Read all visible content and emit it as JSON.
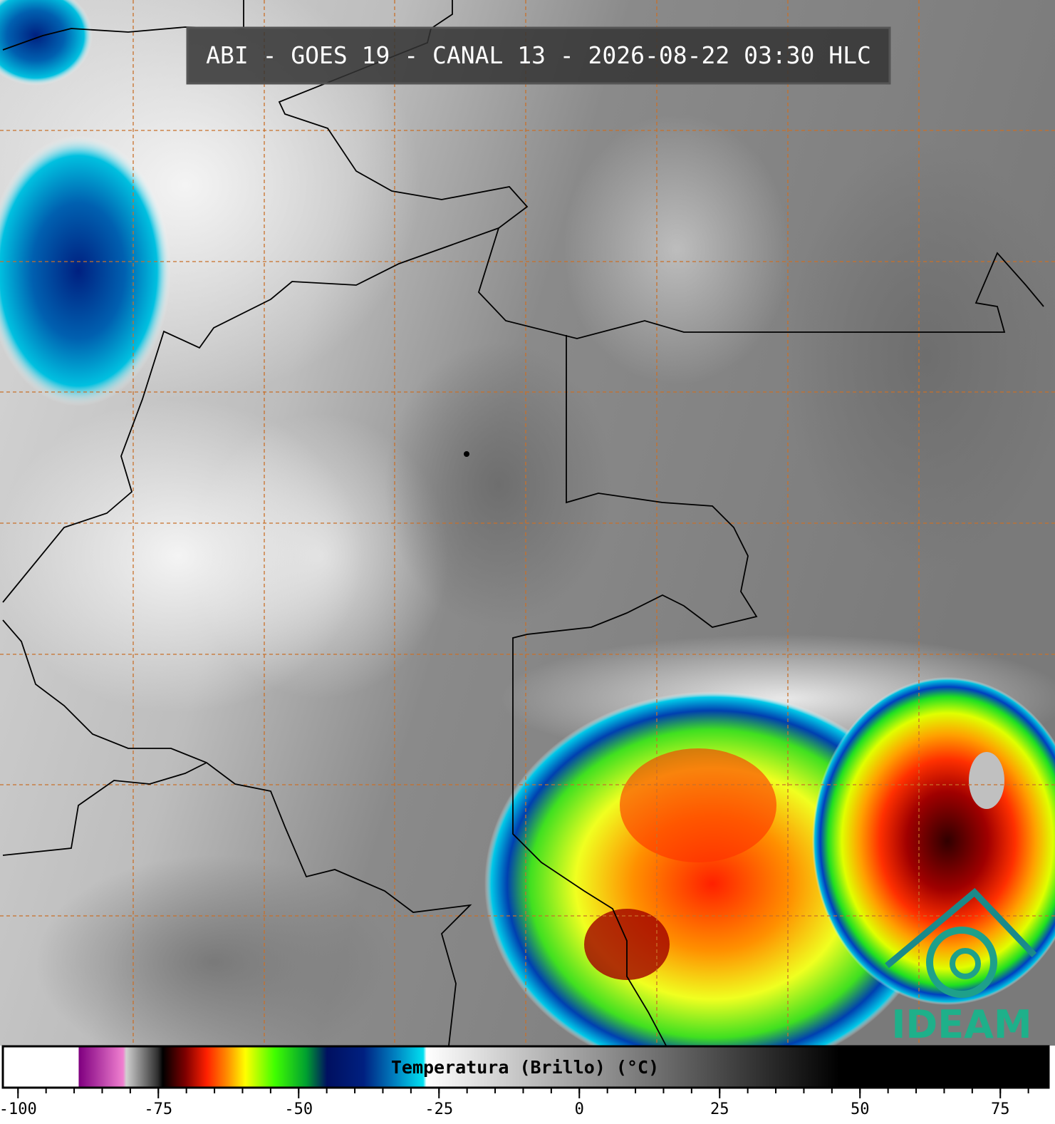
{
  "header": {
    "title": "ABI - GOES 19 - CANAL 13 - 2026-08-22 03:30 HLC"
  },
  "colorbar": {
    "label": "Temperatura (Brillo) (°C)",
    "range": [
      -102.7,
      83.6
    ],
    "ticks": [
      -100,
      -75,
      -50,
      -25,
      0,
      25,
      50,
      75
    ]
  },
  "logo": {
    "text": "IDEAM"
  }
}
